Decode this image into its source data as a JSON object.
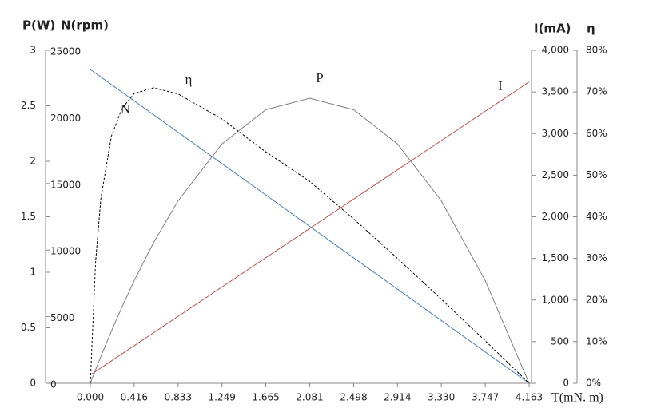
{
  "chart_data": {
    "type": "line",
    "xlabel": "T(mN. m)",
    "xlim": [
      0,
      4.163
    ],
    "xticks": [
      {
        "value": 0,
        "label": "0.000"
      },
      0.416,
      0.833,
      1.249,
      1.665,
      2.081,
      2.498,
      2.914,
      {
        "value": 3.33,
        "label": "3.330"
      },
      3.747,
      4.163
    ],
    "axes": [
      {
        "label": "P(W)",
        "lim": [
          0,
          3
        ],
        "ticks": [
          0,
          0.5,
          1,
          1.5,
          2,
          2.5,
          3
        ]
      },
      {
        "label": "N(rpm)",
        "lim": [
          0,
          25000
        ],
        "ticks": [
          0,
          5000,
          10000,
          15000,
          20000,
          25000
        ]
      },
      {
        "label": "I(mA)",
        "lim": [
          0,
          4000
        ],
        "ticks": [
          0,
          500,
          {
            "value": 1000,
            "label": "1,000"
          },
          {
            "value": 1500,
            "label": "1,500"
          },
          {
            "value": 2000,
            "label": "2,000"
          },
          {
            "value": 2500,
            "label": "2,500"
          },
          {
            "value": 3000,
            "label": "3,000"
          },
          {
            "value": 3500,
            "label": "3,500"
          },
          {
            "value": 4000,
            "label": "4,000"
          }
        ]
      },
      {
        "label": "η",
        "lim": [
          0,
          80
        ],
        "ticks": [
          {
            "value": 0,
            "label": "0%"
          },
          {
            "value": 10,
            "label": "10%"
          },
          {
            "value": 20,
            "label": "20%"
          },
          {
            "value": 30,
            "label": "30%"
          },
          {
            "value": 40,
            "label": "40%"
          },
          {
            "value": 50,
            "label": "50%"
          },
          {
            "value": 60,
            "label": "60%"
          },
          {
            "value": 70,
            "label": "70%"
          },
          {
            "value": 80,
            "label": "80%"
          }
        ]
      }
    ],
    "series": [
      {
        "name": "N",
        "axis": 1,
        "color": "#4a7ebb",
        "dashed": false,
        "x": [
          0,
          4.163
        ],
        "values": [
          23560,
          0
        ]
      },
      {
        "name": "I",
        "axis": 2,
        "color": "#c0504d",
        "dashed": false,
        "x": [
          0,
          4.163
        ],
        "values": [
          100,
          3620
        ]
      },
      {
        "name": "P",
        "axis": 0,
        "color": "#7f7f7f",
        "dashed": false,
        "x": [
          0,
          0.05,
          0.1,
          0.2,
          0.3,
          0.416,
          0.6,
          0.833,
          1.249,
          1.665,
          2.081,
          2.498,
          2.914,
          3.33,
          3.747,
          4.163
        ],
        "values": [
          0,
          0.122,
          0.241,
          0.47,
          0.687,
          0.924,
          1.267,
          1.644,
          2.157,
          2.465,
          2.568,
          2.465,
          2.157,
          1.644,
          0.924,
          0
        ]
      },
      {
        "name": "η",
        "axis": 3,
        "color": "#000000",
        "dashed": true,
        "x": [
          0,
          0.05,
          0.1,
          0.2,
          0.3,
          0.416,
          0.6,
          0.833,
          1.249,
          1.665,
          2.081,
          2.498,
          2.914,
          3.33,
          3.747,
          4.163
        ],
        "values": [
          0,
          29.1,
          44.4,
          59.4,
          66.0,
          69.6,
          71.0,
          69.5,
          63.5,
          55.6,
          48.5,
          39.5,
          30.0,
          20.2,
          10.2,
          0
        ]
      }
    ]
  }
}
